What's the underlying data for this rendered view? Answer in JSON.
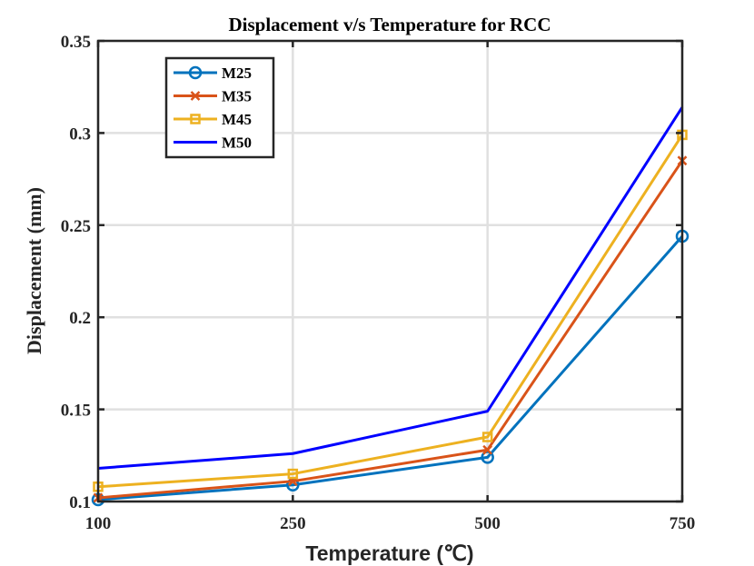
{
  "chart_data": {
    "type": "line",
    "title": "Displacement v/s Temperature for RCC",
    "xlabel": "Temperature (℃)",
    "ylabel": "Displacement (mm)",
    "categories": [
      "100",
      "250",
      "500",
      "750"
    ],
    "ylim": [
      0.1,
      0.35
    ],
    "yticks": [
      0.1,
      0.15,
      0.2,
      0.25,
      0.3,
      0.35
    ],
    "ytick_labels": [
      "0.1",
      "0.15",
      "0.2",
      "0.25",
      "0.3",
      "0.35"
    ],
    "grid": true,
    "legend_position": "top-left",
    "series": [
      {
        "name": "M25",
        "values": [
          0.101,
          0.109,
          0.124,
          0.244
        ],
        "color": "#0072BD",
        "marker": "circle"
      },
      {
        "name": "M35",
        "values": [
          0.102,
          0.111,
          0.128,
          0.285
        ],
        "color": "#D95319",
        "marker": "x"
      },
      {
        "name": "M45",
        "values": [
          0.108,
          0.115,
          0.135,
          0.299
        ],
        "color": "#EDB120",
        "marker": "square"
      },
      {
        "name": "M50",
        "values": [
          0.118,
          0.126,
          0.149,
          0.314
        ],
        "color": "#0000FF",
        "marker": "none"
      }
    ]
  }
}
